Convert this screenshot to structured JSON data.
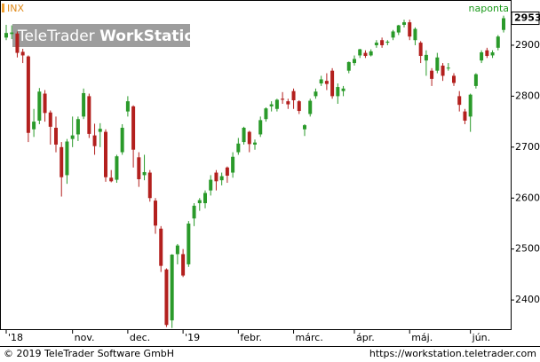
{
  "chart_data": {
    "type": "candlestick",
    "title": "INX",
    "interval": "naponta",
    "watermark": [
      "TeleTrader",
      "WorkStation"
    ],
    "categories": [
      "'18",
      null,
      null,
      null,
      null,
      null,
      null,
      null,
      null,
      null,
      null,
      null,
      "nov.",
      null,
      null,
      null,
      null,
      null,
      null,
      null,
      null,
      null,
      "dec.",
      null,
      null,
      null,
      null,
      null,
      null,
      null,
      null,
      null,
      "'19",
      null,
      null,
      null,
      null,
      null,
      null,
      null,
      null,
      null,
      "febr.",
      null,
      null,
      null,
      null,
      null,
      null,
      null,
      null,
      null,
      "márc.",
      null,
      null,
      null,
      null,
      null,
      null,
      null,
      null,
      null,
      null,
      "ápr.",
      null,
      null,
      null,
      null,
      null,
      null,
      null,
      null,
      null,
      "máj.",
      null,
      null,
      null,
      null,
      null,
      null,
      null,
      null,
      null,
      null,
      "jún.",
      null,
      null,
      null,
      null,
      null,
      null
    ],
    "open": [
      2915,
      2922,
      2923,
      2887,
      2878,
      2735,
      2752,
      2805,
      2768,
      2738,
      2700,
      2645,
      2716,
      2725,
      2760,
      2800,
      2723,
      2730,
      2730,
      2640,
      2636,
      2690,
      2770,
      2780,
      2680,
      2645,
      2650,
      2595,
      2540,
      2460,
      2360,
      2490,
      2490,
      2470,
      2560,
      2590,
      2590,
      2615,
      2650,
      2635,
      2660,
      2650,
      2690,
      2710,
      2730,
      2705,
      2725,
      2755,
      2780,
      2775,
      2795,
      2790,
      2810,
      2790,
      2735,
      2765,
      2800,
      2825,
      2830,
      2850,
      2800,
      2810,
      2850,
      2865,
      2880,
      2885,
      2880,
      2900,
      2910,
      2905,
      2915,
      2925,
      2940,
      2945,
      2910,
      2905,
      2870,
      2850,
      2850,
      2860,
      2855,
      2840,
      2800,
      2770,
      2760,
      2820,
      2870,
      2890,
      2880,
      2895,
      2930
    ],
    "high": [
      2940,
      2939,
      2927,
      2893,
      2880,
      2775,
      2816,
      2812,
      2772,
      2760,
      2710,
      2716,
      2760,
      2760,
      2815,
      2805,
      2746,
      2747,
      2735,
      2655,
      2685,
      2745,
      2800,
      2782,
      2690,
      2685,
      2655,
      2600,
      2545,
      2462,
      2490,
      2510,
      2500,
      2555,
      2590,
      2600,
      2615,
      2645,
      2655,
      2650,
      2662,
      2690,
      2718,
      2740,
      2732,
      2715,
      2760,
      2778,
      2790,
      2795,
      2808,
      2795,
      2815,
      2792,
      2745,
      2795,
      2815,
      2840,
      2845,
      2855,
      2825,
      2820,
      2868,
      2880,
      2893,
      2890,
      2892,
      2910,
      2915,
      2910,
      2930,
      2940,
      2950,
      2950,
      2935,
      2908,
      2890,
      2855,
      2885,
      2865,
      2865,
      2845,
      2810,
      2775,
      2805,
      2845,
      2890,
      2895,
      2890,
      2920,
      2958
    ],
    "low": [
      2910,
      2912,
      2876,
      2865,
      2710,
      2720,
      2745,
      2750,
      2705,
      2690,
      2603,
      2628,
      2700,
      2712,
      2755,
      2718,
      2685,
      2700,
      2632,
      2631,
      2630,
      2685,
      2760,
      2660,
      2622,
      2635,
      2593,
      2530,
      2455,
      2347,
      2345,
      2470,
      2445,
      2465,
      2545,
      2575,
      2580,
      2605,
      2615,
      2625,
      2630,
      2640,
      2685,
      2705,
      2690,
      2695,
      2720,
      2750,
      2770,
      2770,
      2785,
      2775,
      2775,
      2765,
      2722,
      2760,
      2795,
      2820,
      2812,
      2795,
      2785,
      2800,
      2845,
      2860,
      2875,
      2875,
      2878,
      2895,
      2895,
      2900,
      2910,
      2920,
      2935,
      2910,
      2900,
      2865,
      2840,
      2820,
      2845,
      2830,
      2850,
      2820,
      2770,
      2745,
      2730,
      2815,
      2865,
      2875,
      2875,
      2890,
      2925
    ],
    "close": [
      2924,
      2925,
      2885,
      2880,
      2728,
      2750,
      2809,
      2767,
      2740,
      2705,
      2641,
      2711,
      2723,
      2755,
      2806,
      2726,
      2702,
      2736,
      2641,
      2633,
      2682,
      2738,
      2790,
      2695,
      2637,
      2651,
      2600,
      2546,
      2467,
      2351,
      2489,
      2507,
      2448,
      2550,
      2585,
      2596,
      2610,
      2636,
      2633,
      2643,
      2644,
      2681,
      2707,
      2738,
      2706,
      2709,
      2753,
      2776,
      2784,
      2793,
      2793,
      2784,
      2792,
      2771,
      2743,
      2791,
      2809,
      2833,
      2824,
      2800,
      2818,
      2815,
      2867,
      2873,
      2892,
      2879,
      2888,
      2905,
      2900,
      2907,
      2927,
      2939,
      2945,
      2917,
      2932,
      2879,
      2881,
      2834,
      2876,
      2840,
      2856,
      2826,
      2783,
      2752,
      2803,
      2843,
      2886,
      2879,
      2886,
      2917,
      2953
    ],
    "up_color": "#2a9a2a",
    "down_color": "#b3201e",
    "ylim": [
      2341,
      2987
    ],
    "yticks": [
      2400,
      2500,
      2600,
      2700,
      2800,
      2900
    ]
  },
  "footer": {
    "copyright": "© 2019 TeleTrader Software GmbH",
    "url": "https://workstation.teletrader.com"
  }
}
